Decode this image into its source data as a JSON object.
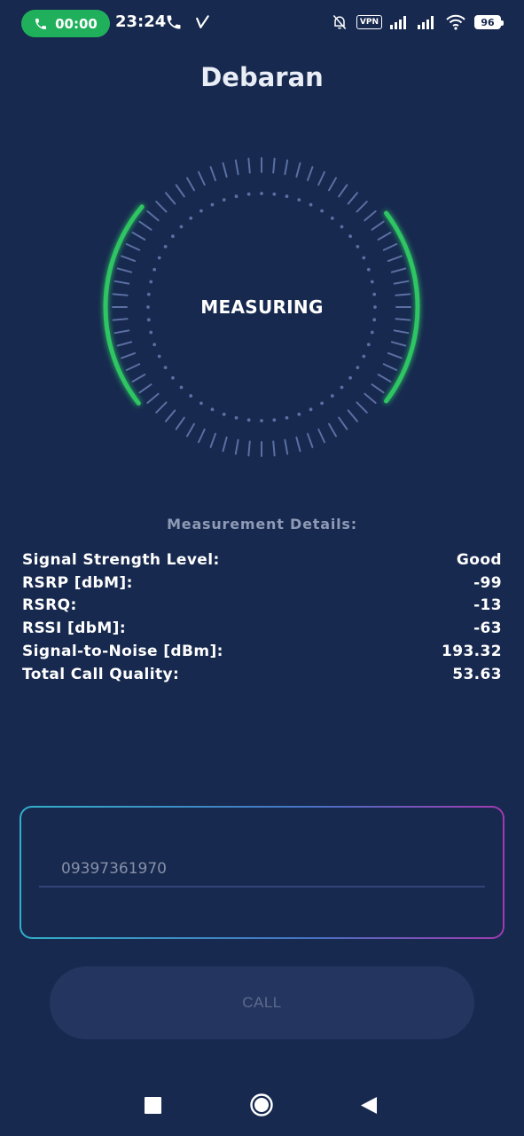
{
  "status_bar": {
    "call_timer": "00:00",
    "time": "23:24",
    "vpn_label": "VPN",
    "battery": "96",
    "icons": [
      "phone-icon",
      "call-arrow-icon",
      "bell-muted-icon",
      "vpn-icon",
      "signal-icon",
      "signal-icon",
      "wifi-icon",
      "battery-icon"
    ]
  },
  "header": {
    "title": "Debaran"
  },
  "gauge": {
    "status": "MEASURING",
    "accent_color": "#2fc564",
    "tick_color": "#5b6fa2"
  },
  "details": {
    "heading": "Measurement Details:",
    "rows": [
      {
        "label": "Signal Strength Level:",
        "value": "Good"
      },
      {
        "label": "RSRP [dbM]:",
        "value": "-99"
      },
      {
        "label": "RSRQ:",
        "value": "-13"
      },
      {
        "label": "RSSI [dbM]:",
        "value": "-63"
      },
      {
        "label": "Signal-to-Noise [dBm]:",
        "value": "193.32"
      },
      {
        "label": "Total Call Quality:",
        "value": "53.63"
      }
    ]
  },
  "phone_input": {
    "placeholder": "09397361970",
    "value": ""
  },
  "call_button": {
    "label": "CALL"
  },
  "nav": {
    "icons": [
      "square-icon",
      "circle-icon",
      "back-triangle-icon"
    ]
  }
}
